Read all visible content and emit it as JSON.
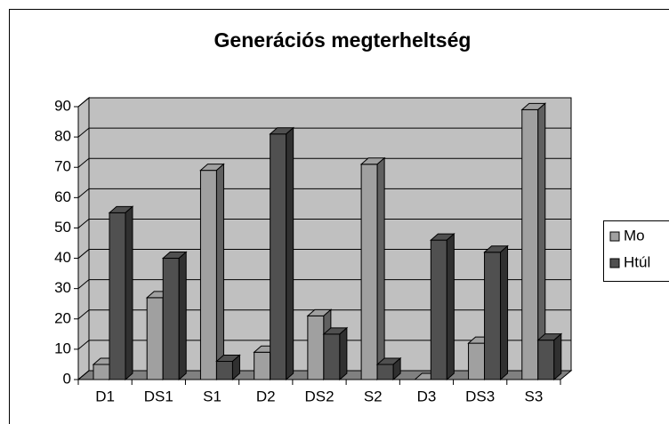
{
  "chart_data": {
    "type": "bar",
    "title": "Generációs megterheltség",
    "categories": [
      "D1",
      "DS1",
      "S1",
      "D2",
      "DS2",
      "S2",
      "D3",
      "DS3",
      "S3"
    ],
    "series": [
      {
        "name": "Mo",
        "color": "#a0a0a0",
        "values": [
          5,
          27,
          69,
          9,
          21,
          71,
          0,
          12,
          89
        ]
      },
      {
        "name": "Htúl",
        "color": "#505050",
        "values": [
          55,
          40,
          6,
          81,
          15,
          5,
          46,
          42,
          13
        ]
      }
    ],
    "ylim": [
      0,
      90
    ],
    "yticks": [
      0,
      10,
      20,
      30,
      40,
      50,
      60,
      70,
      80,
      90
    ],
    "grid": true,
    "legend": "right"
  }
}
